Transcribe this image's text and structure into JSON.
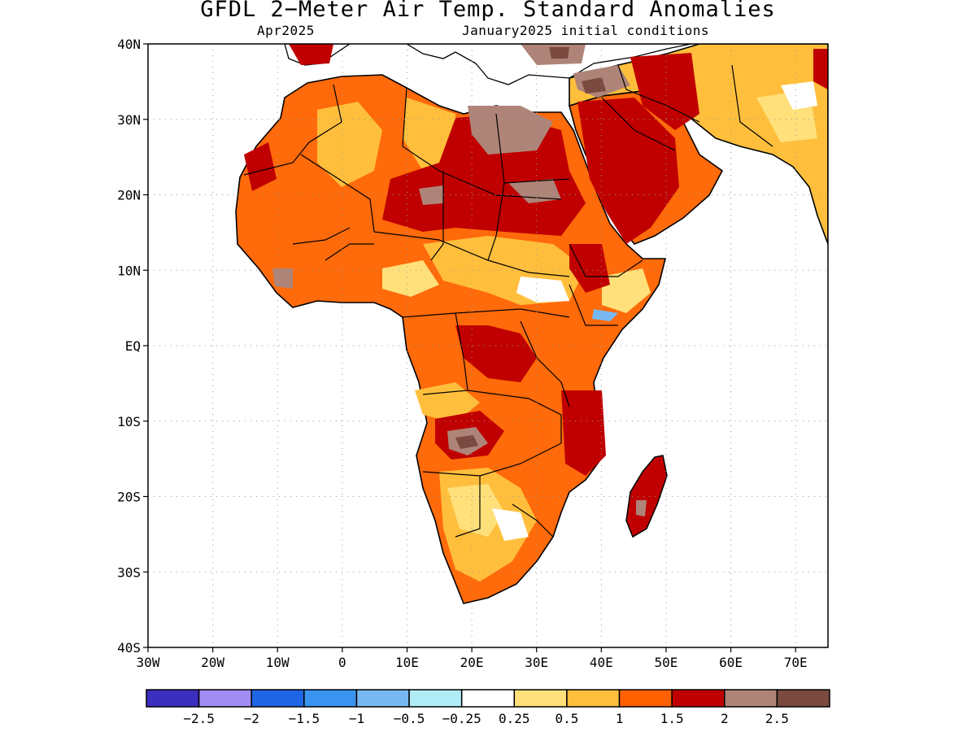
{
  "header": {
    "title": "GFDL 2−Meter Air Temp. Standard Anomalies",
    "valid_month": "Apr2025",
    "init_conditions": "January2025 initial conditions"
  },
  "map": {
    "region": "Africa",
    "lon_range": [
      -30,
      75
    ],
    "lat_range": [
      -40,
      40
    ],
    "lat_labels": [
      "40N",
      "30N",
      "20N",
      "10N",
      "EQ",
      "10S",
      "20S",
      "30S",
      "40S"
    ],
    "lon_labels": [
      "30W",
      "20W",
      "10W",
      "0",
      "10E",
      "20E",
      "30E",
      "40E",
      "50E",
      "60E",
      "70E"
    ],
    "grid": "dotted"
  },
  "colorbar": {
    "colors": [
      "#3c2ebf",
      "#a08cf2",
      "#1f66e6",
      "#3a94ef",
      "#78b8f2",
      "#b0ecf6",
      "#ffffff",
      "#ffe07a",
      "#ffbf3c",
      "#ff6100",
      "#c00000",
      "#ae8478",
      "#7a4a40"
    ],
    "labels": [
      "−2.5",
      "−2",
      "−1.5",
      "−1",
      "−0.5",
      "−0.25",
      "0.25",
      "0.5",
      "1",
      "1.5",
      "2",
      "2.5"
    ]
  }
}
